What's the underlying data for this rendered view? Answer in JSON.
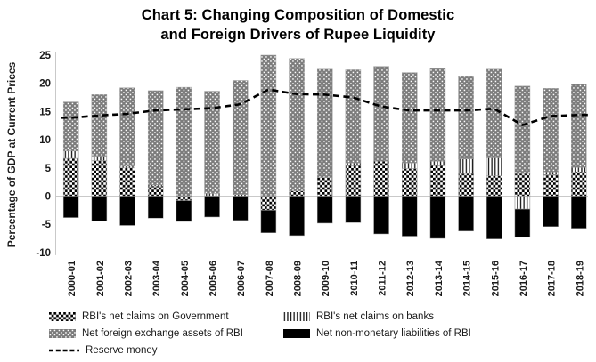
{
  "title": {
    "line1": "Chart 5: Changing Composition of Domestic",
    "line2": "and Foreign Drivers of Rupee Liquidity"
  },
  "chart_data": {
    "type": "bar",
    "stacked": true,
    "title": "Chart 5: Changing Composition of Domestic and Foreign Drivers of Rupee Liquidity",
    "xlabel": "",
    "ylabel": "Percentage of GDP at Current Prices",
    "ylim": [
      -10,
      25
    ],
    "yticks": [
      25,
      20,
      15,
      10,
      5,
      0,
      -5,
      -10
    ],
    "grid": "zero-baseline-only",
    "legend_position": "bottom",
    "categories": [
      "2000-01",
      "2001-02",
      "2002-03",
      "2003-04",
      "2004-05",
      "2005-06",
      "2006-07",
      "2007-08",
      "2008-09",
      "2009-10",
      "2010-11",
      "2011-12",
      "2012-13",
      "2013-14",
      "2014-15",
      "2015-16",
      "2016-17",
      "2017-18",
      "2018-19"
    ],
    "series": [
      {
        "name": "RBI's net claims on Government",
        "type": "bar",
        "pattern": "checkerboard",
        "values": [
          6.7,
          6.3,
          5.0,
          1.8,
          -0.8,
          0,
          0,
          -2.5,
          0.9,
          3.3,
          5.5,
          6.2,
          4.9,
          5.5,
          4.0,
          3.6,
          4.0,
          3.8,
          4.3
        ]
      },
      {
        "name": "RBI's net claims on banks",
        "type": "bar",
        "pattern": "vertical-stripes",
        "values": [
          1.3,
          0.8,
          0.3,
          0.2,
          0,
          0.5,
          0.3,
          0,
          0,
          0,
          0.4,
          0,
          1.0,
          0.7,
          2.6,
          3.2,
          -2.3,
          0.5,
          0.8
        ]
      },
      {
        "name": "Net foreign exchange assets of RBI",
        "type": "bar",
        "pattern": "gray-dots",
        "values": [
          8.7,
          10.9,
          13.9,
          16.7,
          19.3,
          18.1,
          20.2,
          25.0,
          23.5,
          19.2,
          16.5,
          16.8,
          16.0,
          16.4,
          14.6,
          15.7,
          15.5,
          14.8,
          14.8
        ]
      },
      {
        "name": "Net non-monetary liabilities of RBI",
        "type": "bar",
        "pattern": "solid-black",
        "values": [
          -3.8,
          -4.4,
          -5.2,
          -3.9,
          -3.7,
          -3.7,
          -4.3,
          -4.0,
          -7.0,
          -4.8,
          -4.7,
          -6.7,
          -7.1,
          -7.5,
          -6.2,
          -7.6,
          -5.0,
          -5.4,
          -5.7
        ]
      },
      {
        "name": "Reserve money",
        "type": "line",
        "style": "dashed-black",
        "values": [
          13.9,
          14.3,
          14.6,
          15.2,
          15.4,
          15.6,
          16.3,
          18.9,
          18.1,
          18.0,
          17.5,
          15.9,
          15.2,
          15.2,
          15.2,
          15.5,
          12.6,
          14.2,
          14.4
        ]
      }
    ],
    "colors": {
      "bar_black": "#000000",
      "pattern_gray": "#7c7c7c",
      "grid_gray": "#c9c9c9",
      "line_black": "#000000"
    }
  }
}
